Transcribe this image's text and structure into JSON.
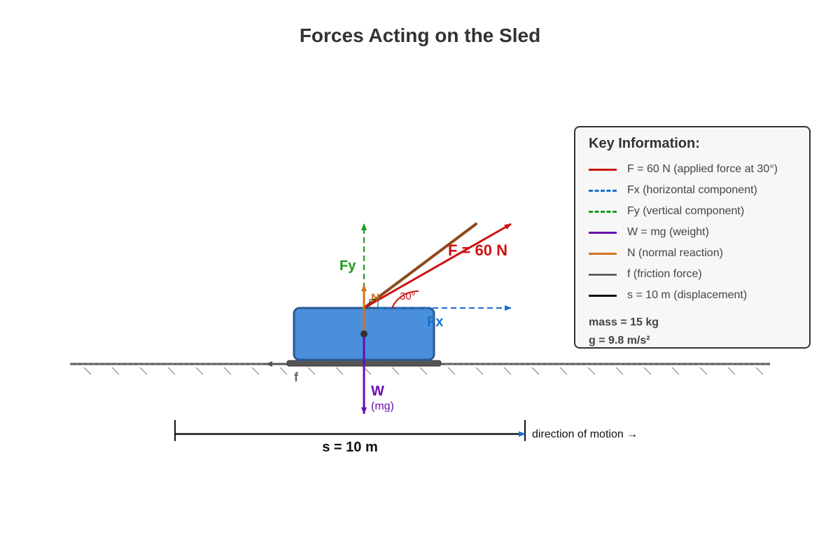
{
  "title": "Forces Acting on the Sled",
  "labels": {
    "F": "F = 60 N",
    "Fx": "Fx",
    "Fy": "Fy",
    "N": "N",
    "angle": "30°",
    "f": "f",
    "W": "W",
    "mg": "(mg)",
    "s": "s = 10 m",
    "direction": "direction of motion →"
  },
  "key": {
    "title": "Key Information:",
    "items": [
      {
        "text": "F = 60 N (applied force at 30°)",
        "color": "#cc1111",
        "style": "solid"
      },
      {
        "text": "Fx (horizontal component)",
        "color": "#1a6fcf",
        "style": "dashed"
      },
      {
        "text": "Fy (vertical component)",
        "color": "#1a9a1a",
        "style": "dashed"
      },
      {
        "text": "W = mg (weight)",
        "color": "#6a0dad",
        "style": "solid"
      },
      {
        "text": "N (normal reaction)",
        "color": "#d2731e",
        "style": "solid"
      },
      {
        "text": "f (friction force)",
        "color": "#666666",
        "style": "solid"
      },
      {
        "text": "s = 10 m (displacement)",
        "color": "#111111",
        "style": "solid"
      }
    ],
    "mass": "mass = 15 kg",
    "gravity": "g = 9.8 m/s²"
  },
  "colors": {
    "sled_fill": "#4a8fdb",
    "sled_stroke": "#2a5a8f",
    "rope": "#8b4a1c",
    "applied_force": "#cc1111",
    "fx": "#1a6fcf",
    "fy": "#1a9a1a",
    "weight": "#6a0dad",
    "normal": "#d2731e",
    "friction": "#666666",
    "ground": "#555555"
  }
}
